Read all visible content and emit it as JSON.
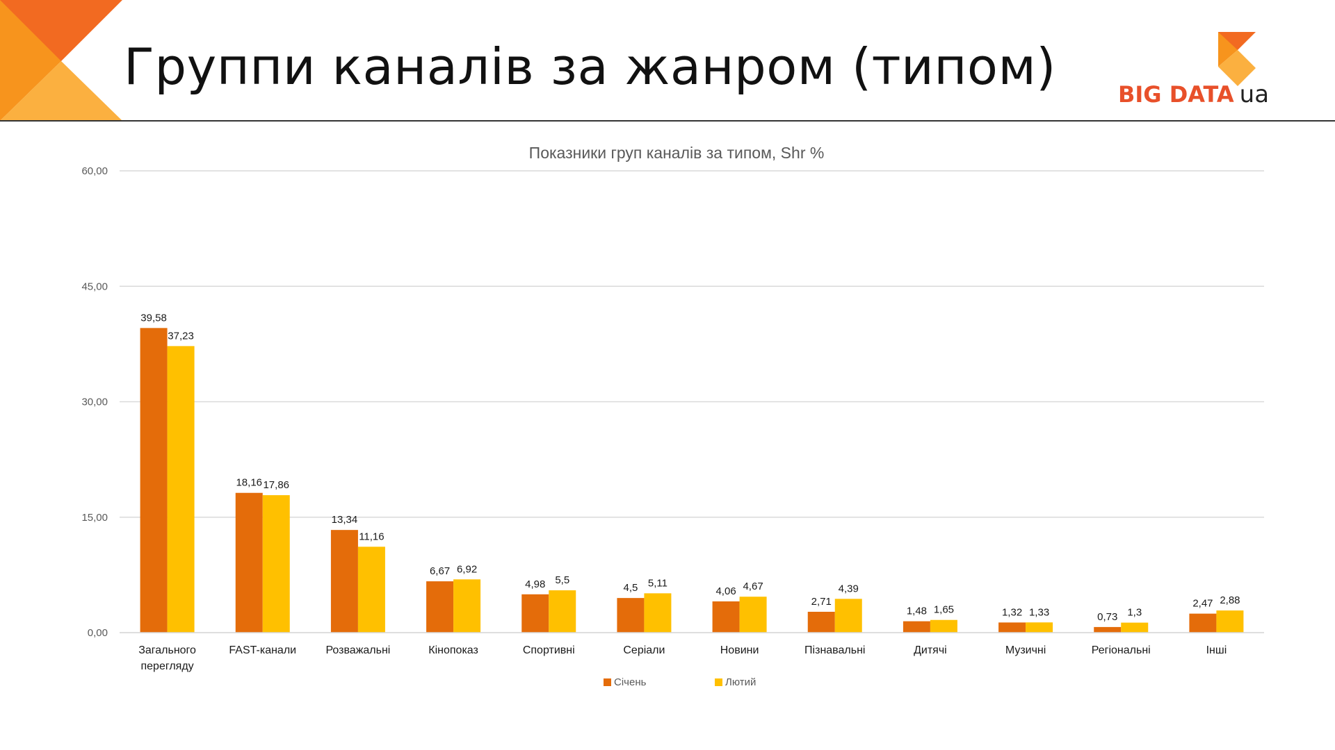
{
  "slide": {
    "title": "Группи каналів за жанром (типом)"
  },
  "logo": {
    "brand": "BIG DATA",
    "suffix": "ua"
  },
  "colors": {
    "series_jan": "#e46c0a",
    "series_feb": "#ffc000",
    "corner_dark": "#f26a21",
    "corner_mid": "#f7941d",
    "corner_light": "#fbb040",
    "gridline": "#d9d9d9"
  },
  "chart_data": {
    "type": "bar",
    "title": "Показники груп каналів за типом, Shr %",
    "xlabel": "",
    "ylabel": "",
    "ylim": [
      0,
      60
    ],
    "yticks": [
      "0,00",
      "15,00",
      "30,00",
      "45,00",
      "60,00"
    ],
    "grid": true,
    "legend": "bottom",
    "categories": [
      [
        "Загального",
        "перегляду"
      ],
      [
        "FAST-канали"
      ],
      [
        "Розважальні"
      ],
      [
        "Кінопоказ"
      ],
      [
        "Спортивні"
      ],
      [
        "Серіали"
      ],
      [
        "Новини"
      ],
      [
        "Пізнавальні"
      ],
      [
        "Дитячі"
      ],
      [
        "Музичні"
      ],
      [
        "Регіональні"
      ],
      [
        "Інші"
      ]
    ],
    "series": [
      {
        "name": "Січень",
        "values": [
          39.58,
          18.16,
          13.34,
          6.67,
          4.98,
          4.5,
          4.06,
          2.71,
          1.48,
          1.32,
          0.73,
          2.47
        ],
        "labels": [
          "39,58",
          "18,16",
          "13,34",
          "6,67",
          "4,98",
          "4,5",
          "4,06",
          "2,71",
          "1,48",
          "1,32",
          "0,73",
          "2,47"
        ]
      },
      {
        "name": "Лютий",
        "values": [
          37.23,
          17.86,
          11.16,
          6.92,
          5.5,
          5.11,
          4.67,
          4.39,
          1.65,
          1.33,
          1.3,
          2.88
        ],
        "labels": [
          "37,23",
          "17,86",
          "11,16",
          "6,92",
          "5,5",
          "5,11",
          "4,67",
          "4,39",
          "1,65",
          "1,33",
          "1,3",
          "2,88"
        ]
      }
    ]
  }
}
